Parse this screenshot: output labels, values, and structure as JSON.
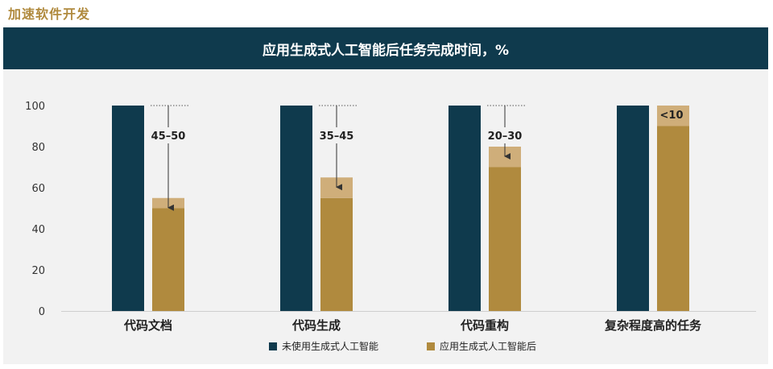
{
  "page_heading": "加速软件开发",
  "colors": {
    "header_bg": "#0f3a4d",
    "without_ai": "#0f3a4d",
    "with_ai_base": "#b08a3e",
    "with_ai_range": "#cfae7a",
    "heading_text": "#b08a3e"
  },
  "chart_data": {
    "type": "bar",
    "title": "应用生成式人工智能后任务完成时间，%",
    "categories": [
      "代码文档",
      "代码生成",
      "代码重构",
      "复杂程度高的任务"
    ],
    "ylim": [
      0,
      100
    ],
    "yticks": [
      0,
      20,
      40,
      60,
      80,
      100
    ],
    "grid": false,
    "legend_position": "bottom",
    "series": [
      {
        "name": "未使用生成式人工智能",
        "values": [
          100,
          100,
          100,
          100
        ]
      },
      {
        "name": "应用生成式人工智能后",
        "range_low": [
          50,
          55,
          70,
          90
        ],
        "range_high": [
          55,
          65,
          80,
          100
        ]
      }
    ],
    "annotations": [
      "45–50",
      "35–45",
      "20–30",
      "<10"
    ]
  }
}
